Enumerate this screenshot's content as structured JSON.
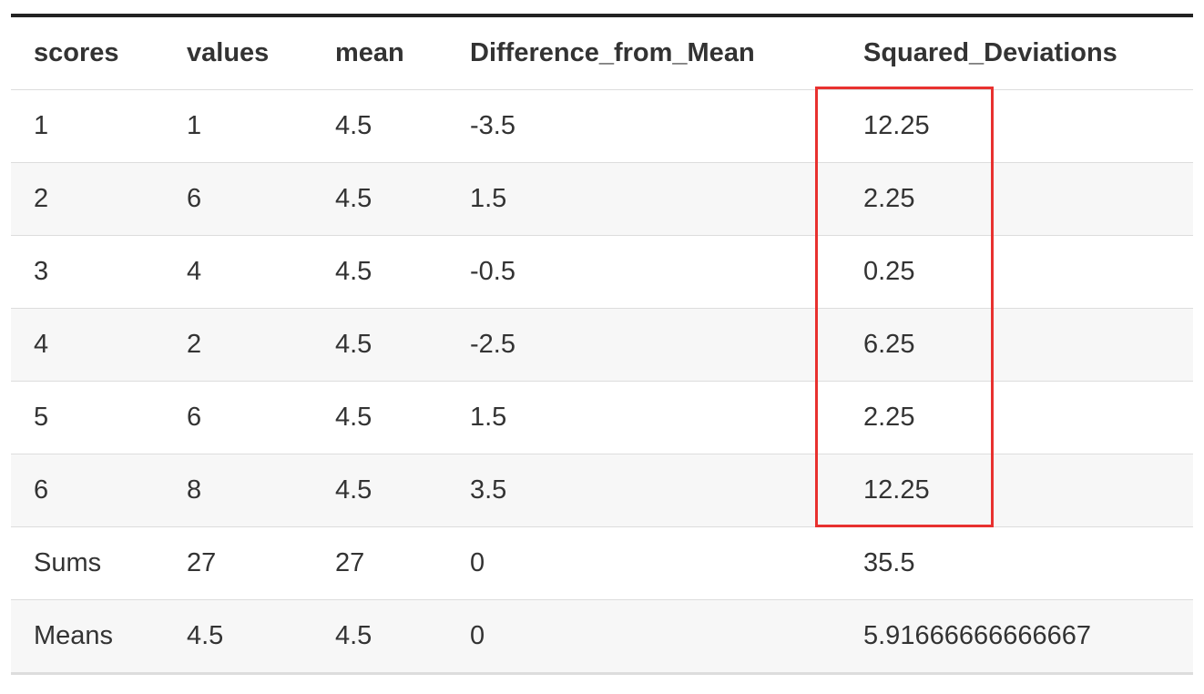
{
  "table": {
    "columns": [
      "scores",
      "values",
      "mean",
      "Difference_from_Mean",
      "Squared_Deviations"
    ],
    "rows": [
      [
        "1",
        "1",
        "4.5",
        "-3.5",
        "12.25"
      ],
      [
        "2",
        "6",
        "4.5",
        "1.5",
        "2.25"
      ],
      [
        "3",
        "4",
        "4.5",
        "-0.5",
        "0.25"
      ],
      [
        "4",
        "2",
        "4.5",
        "-2.5",
        "6.25"
      ],
      [
        "5",
        "6",
        "4.5",
        "1.5",
        "2.25"
      ],
      [
        "6",
        "8",
        "4.5",
        "3.5",
        "12.25"
      ],
      [
        "Sums",
        "27",
        "27",
        "0",
        "35.5"
      ],
      [
        "Means",
        "4.5",
        "4.5",
        "0",
        "5.91666666666667"
      ]
    ]
  },
  "colors": {
    "highlight": "#e8312f",
    "stripe": "#f7f7f7",
    "rule": "#222222"
  }
}
